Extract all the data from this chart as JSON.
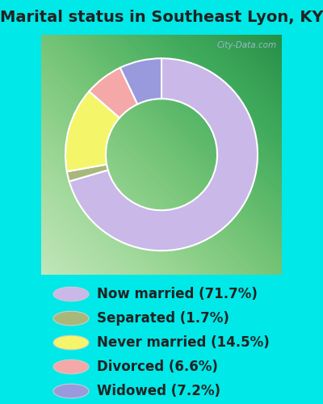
{
  "title": "Marital status in Southeast Lyon, KY",
  "slices": [
    71.7,
    1.7,
    14.5,
    6.6,
    7.2
  ],
  "labels": [
    "Now married (71.7%)",
    "Separated (1.7%)",
    "Never married (14.5%)",
    "Divorced (6.6%)",
    "Widowed (7.2%)"
  ],
  "colors": [
    "#c9b8e8",
    "#a8b87a",
    "#f5f56a",
    "#f4a8a8",
    "#9999dd"
  ],
  "startangle": 90,
  "chart_bg_color_tl": "#e8f5ef",
  "chart_bg_color_br": "#d0f0e8",
  "outer_background": "#00e8e8",
  "title_fontsize": 14,
  "title_color": "#222222",
  "legend_fontsize": 12,
  "watermark": "City-Data.com",
  "donut_width": 0.42
}
